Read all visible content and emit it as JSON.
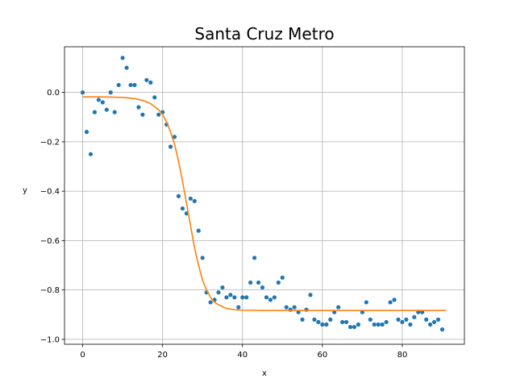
{
  "chart_data": {
    "type": "scatter",
    "title": "Santa Cruz Metro",
    "xlabel": "x",
    "ylabel": "y",
    "xlim": [
      -4.55,
      95.55
    ],
    "ylim": [
      -1.02,
      0.185
    ],
    "xticks": [
      0,
      20,
      40,
      60,
      80
    ],
    "yticks": [
      0.0,
      -0.2,
      -0.4,
      -0.6,
      -0.8,
      -1.0
    ],
    "xtick_labels": [
      "0",
      "20",
      "40",
      "60",
      "80"
    ],
    "ytick_labels": [
      "0.0",
      "−0.2",
      "−0.4",
      "−0.6",
      "−0.8",
      "−1.0"
    ],
    "grid": true,
    "series": [
      {
        "kind": "scatter",
        "color": "#1f77b4",
        "x": [
          0,
          1,
          2,
          3,
          4,
          5,
          6,
          7,
          8,
          9,
          10,
          11,
          12,
          13,
          14,
          15,
          16,
          17,
          18,
          19,
          20,
          21,
          22,
          23,
          24,
          25,
          26,
          27,
          28,
          29,
          30,
          31,
          32,
          33,
          34,
          35,
          36,
          37,
          38,
          39,
          40,
          41,
          42,
          43,
          44,
          45,
          46,
          47,
          48,
          49,
          50,
          51,
          52,
          53,
          54,
          55,
          56,
          57,
          58,
          59,
          60,
          61,
          62,
          63,
          64,
          65,
          66,
          67,
          68,
          69,
          70,
          71,
          72,
          73,
          74,
          75,
          76,
          77,
          78,
          79,
          80,
          81,
          82,
          83,
          84,
          85,
          86,
          87,
          88,
          89,
          90
        ],
        "y": [
          0.0,
          -0.16,
          -0.25,
          -0.08,
          -0.03,
          -0.04,
          -0.07,
          0.0,
          -0.08,
          0.03,
          0.14,
          0.1,
          0.03,
          0.03,
          -0.06,
          -0.09,
          0.05,
          0.04,
          -0.02,
          -0.09,
          -0.08,
          -0.13,
          -0.22,
          -0.18,
          -0.42,
          -0.47,
          -0.49,
          -0.43,
          -0.44,
          -0.56,
          -0.67,
          -0.81,
          -0.85,
          -0.84,
          -0.81,
          -0.79,
          -0.83,
          -0.82,
          -0.83,
          -0.87,
          -0.83,
          -0.83,
          -0.77,
          -0.67,
          -0.77,
          -0.79,
          -0.83,
          -0.84,
          -0.83,
          -0.77,
          -0.75,
          -0.87,
          -0.88,
          -0.87,
          -0.89,
          -0.92,
          -0.88,
          -0.82,
          -0.92,
          -0.93,
          -0.94,
          -0.94,
          -0.92,
          -0.89,
          -0.87,
          -0.93,
          -0.93,
          -0.95,
          -0.95,
          -0.94,
          -0.89,
          -0.85,
          -0.92,
          -0.94,
          -0.94,
          -0.94,
          -0.93,
          -0.85,
          -0.84,
          -0.92,
          -0.93,
          -0.92,
          -0.94,
          -0.91,
          -0.89,
          -0.89,
          -0.92,
          -0.94,
          -0.93,
          -0.92,
          -0.96
        ]
      },
      {
        "kind": "line",
        "color": "#ff7f0e",
        "x": [
          0,
          5,
          10,
          13,
          15,
          17,
          19,
          20,
          21,
          22,
          23,
          24,
          25,
          26,
          27,
          28,
          29,
          30,
          31,
          32,
          33,
          34,
          36,
          38,
          40,
          45,
          50,
          60,
          70,
          80,
          91
        ],
        "y": [
          -0.018,
          -0.018,
          -0.02,
          -0.025,
          -0.032,
          -0.045,
          -0.07,
          -0.09,
          -0.12,
          -0.16,
          -0.21,
          -0.28,
          -0.36,
          -0.45,
          -0.54,
          -0.63,
          -0.7,
          -0.76,
          -0.8,
          -0.83,
          -0.85,
          -0.86,
          -0.875,
          -0.88,
          -0.882,
          -0.883,
          -0.883,
          -0.883,
          -0.883,
          -0.883,
          -0.883
        ]
      }
    ]
  }
}
